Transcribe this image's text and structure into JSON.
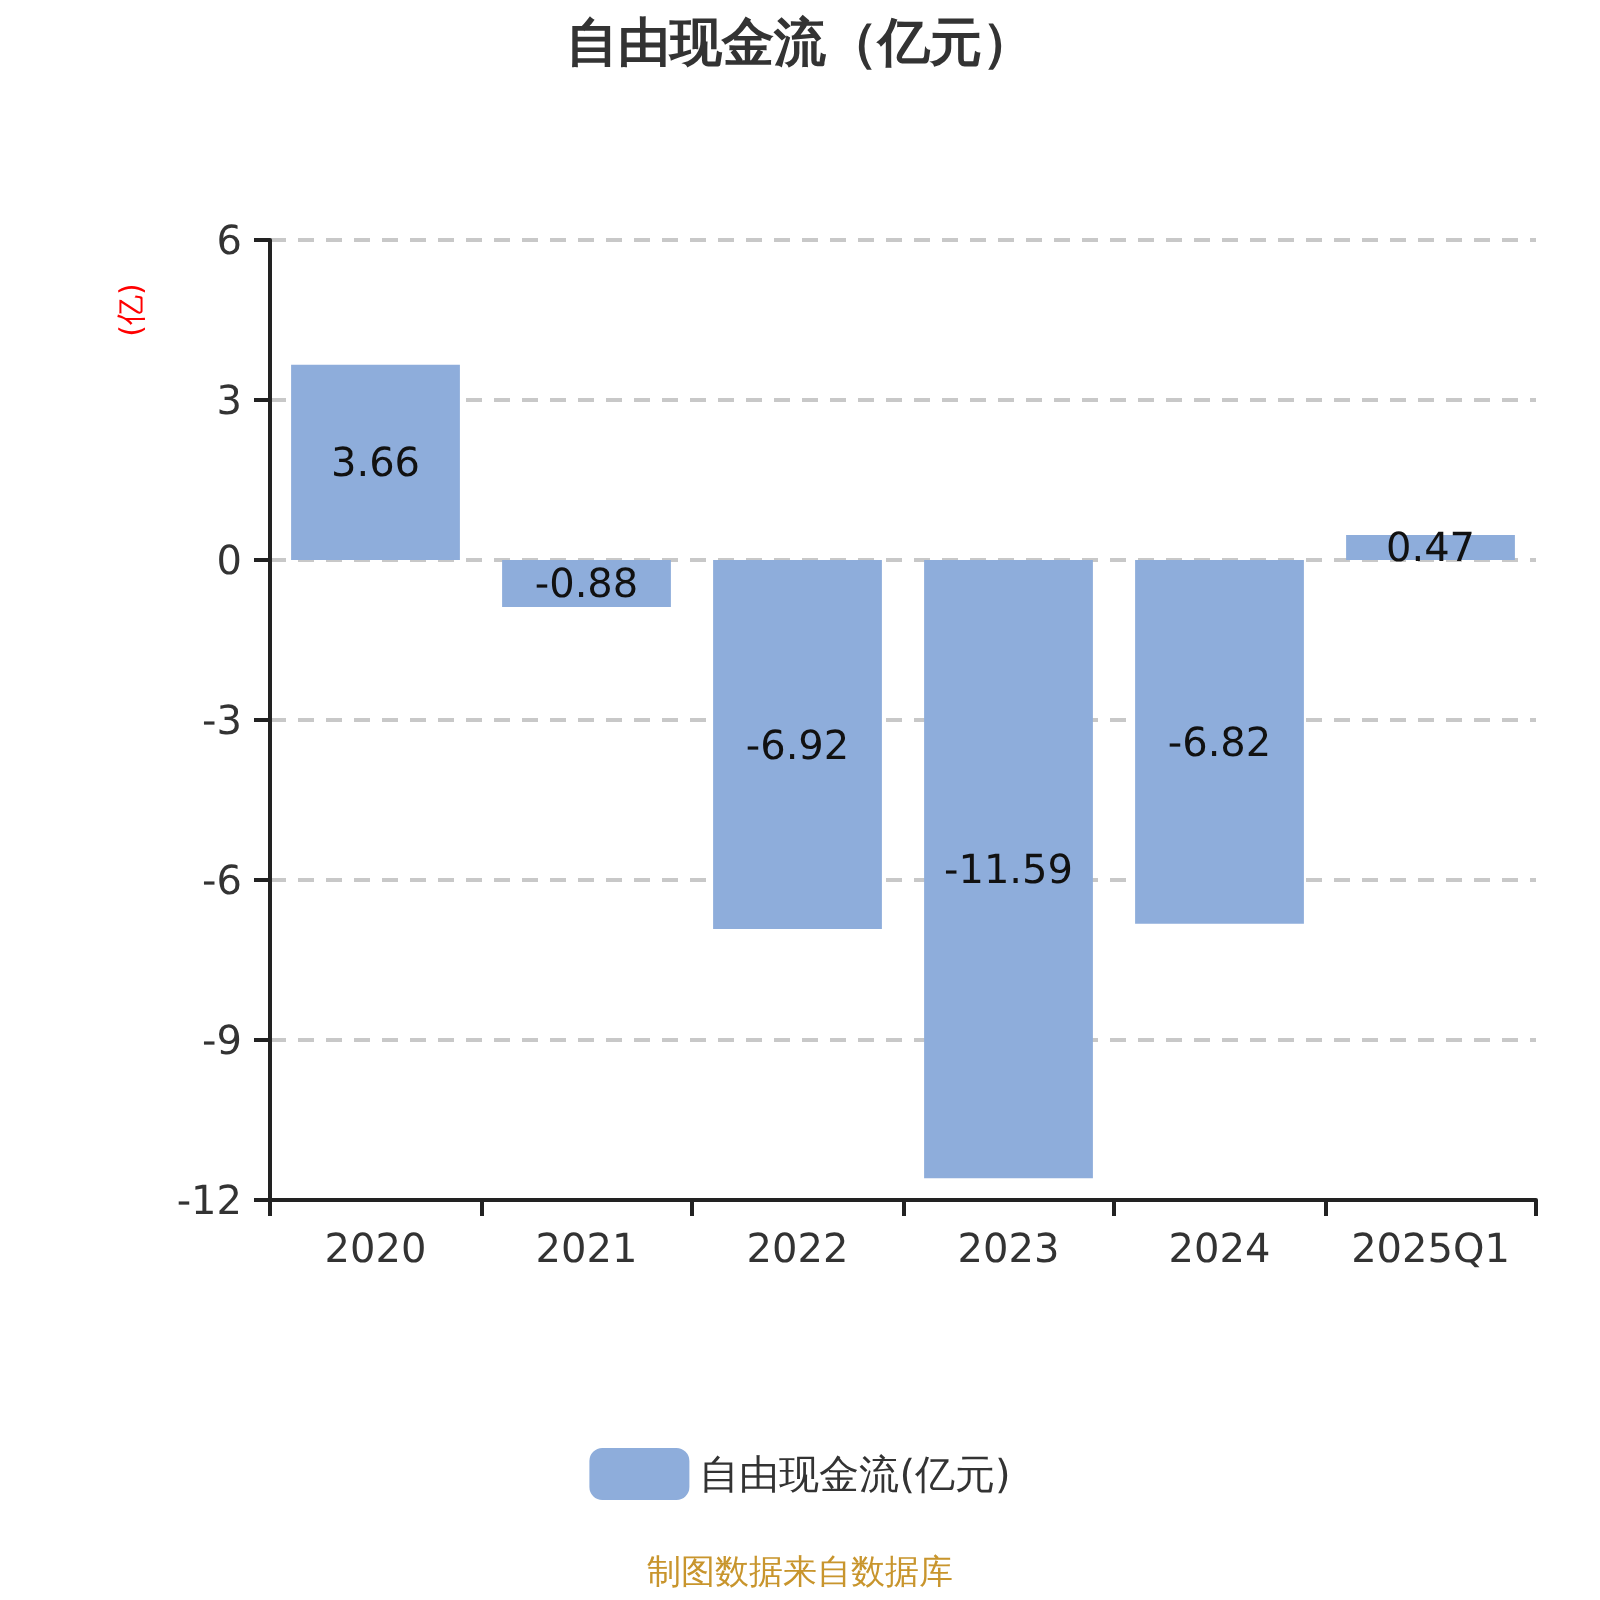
{
  "chart_data": {
    "type": "bar",
    "title": "自由现金流（亿元）",
    "ylabel": "(亿)",
    "categories": [
      "2020",
      "2021",
      "2022",
      "2023",
      "2024",
      "2025Q1"
    ],
    "series": [
      {
        "name": "自由现金流(亿元)",
        "color": "#8eaddb",
        "values": [
          3.66,
          -0.88,
          -6.92,
          -11.59,
          -6.82,
          0.47
        ]
      }
    ],
    "ylim": [
      -12,
      6
    ],
    "yticks": [
      -12,
      -9,
      -6,
      -3,
      0,
      3,
      6
    ],
    "grid": "y",
    "legend": "bottom",
    "data_labels": true,
    "annotations": [
      "制图数据来自数据库"
    ]
  }
}
